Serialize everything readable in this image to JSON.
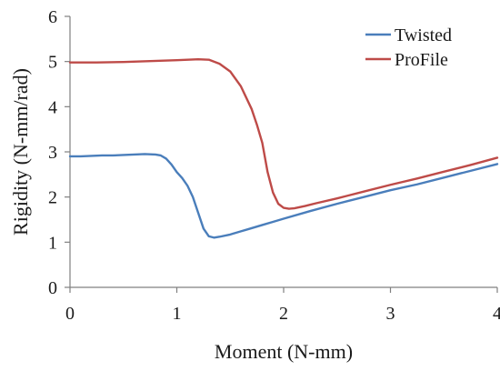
{
  "chart_data": {
    "type": "line",
    "title": "",
    "xlabel": "Moment (N-mm)",
    "ylabel": "Rigidity (N-mm/rad)",
    "xlim": [
      0,
      4
    ],
    "ylim": [
      0,
      6
    ],
    "xticks": [
      0,
      1,
      2,
      3,
      4
    ],
    "yticks": [
      0,
      1,
      2,
      3,
      4,
      5,
      6
    ],
    "grid": false,
    "legend_position": "top-right",
    "series": [
      {
        "name": "Twisted",
        "color": "#4a7ebb",
        "points": [
          [
            0,
            2.9
          ],
          [
            0.1,
            2.9
          ],
          [
            0.2,
            2.91
          ],
          [
            0.3,
            2.92
          ],
          [
            0.4,
            2.92
          ],
          [
            0.5,
            2.93
          ],
          [
            0.6,
            2.94
          ],
          [
            0.7,
            2.95
          ],
          [
            0.8,
            2.94
          ],
          [
            0.85,
            2.92
          ],
          [
            0.9,
            2.85
          ],
          [
            0.95,
            2.72
          ],
          [
            1.0,
            2.55
          ],
          [
            1.05,
            2.42
          ],
          [
            1.1,
            2.25
          ],
          [
            1.15,
            2.0
          ],
          [
            1.2,
            1.65
          ],
          [
            1.25,
            1.3
          ],
          [
            1.3,
            1.13
          ],
          [
            1.35,
            1.1
          ],
          [
            1.4,
            1.12
          ],
          [
            1.5,
            1.17
          ],
          [
            1.6,
            1.24
          ],
          [
            1.7,
            1.31
          ],
          [
            1.8,
            1.38
          ],
          [
            1.9,
            1.45
          ],
          [
            2.0,
            1.52
          ],
          [
            2.25,
            1.69
          ],
          [
            2.5,
            1.85
          ],
          [
            2.75,
            2.0
          ],
          [
            3.0,
            2.15
          ],
          [
            3.25,
            2.28
          ],
          [
            3.5,
            2.43
          ],
          [
            3.75,
            2.58
          ],
          [
            4.0,
            2.73
          ]
        ]
      },
      {
        "name": "ProFile",
        "color": "#be4b48",
        "points": [
          [
            0,
            4.98
          ],
          [
            0.25,
            4.98
          ],
          [
            0.5,
            4.99
          ],
          [
            0.75,
            5.01
          ],
          [
            1.0,
            5.03
          ],
          [
            1.1,
            5.04
          ],
          [
            1.2,
            5.05
          ],
          [
            1.3,
            5.04
          ],
          [
            1.4,
            4.95
          ],
          [
            1.5,
            4.78
          ],
          [
            1.6,
            4.45
          ],
          [
            1.7,
            3.95
          ],
          [
            1.75,
            3.6
          ],
          [
            1.8,
            3.2
          ],
          [
            1.85,
            2.55
          ],
          [
            1.9,
            2.1
          ],
          [
            1.95,
            1.85
          ],
          [
            2.0,
            1.76
          ],
          [
            2.05,
            1.74
          ],
          [
            2.1,
            1.75
          ],
          [
            2.2,
            1.8
          ],
          [
            2.3,
            1.86
          ],
          [
            2.5,
            1.97
          ],
          [
            2.75,
            2.12
          ],
          [
            3.0,
            2.27
          ],
          [
            3.25,
            2.41
          ],
          [
            3.5,
            2.56
          ],
          [
            3.75,
            2.71
          ],
          [
            4.0,
            2.87
          ]
        ]
      }
    ]
  }
}
